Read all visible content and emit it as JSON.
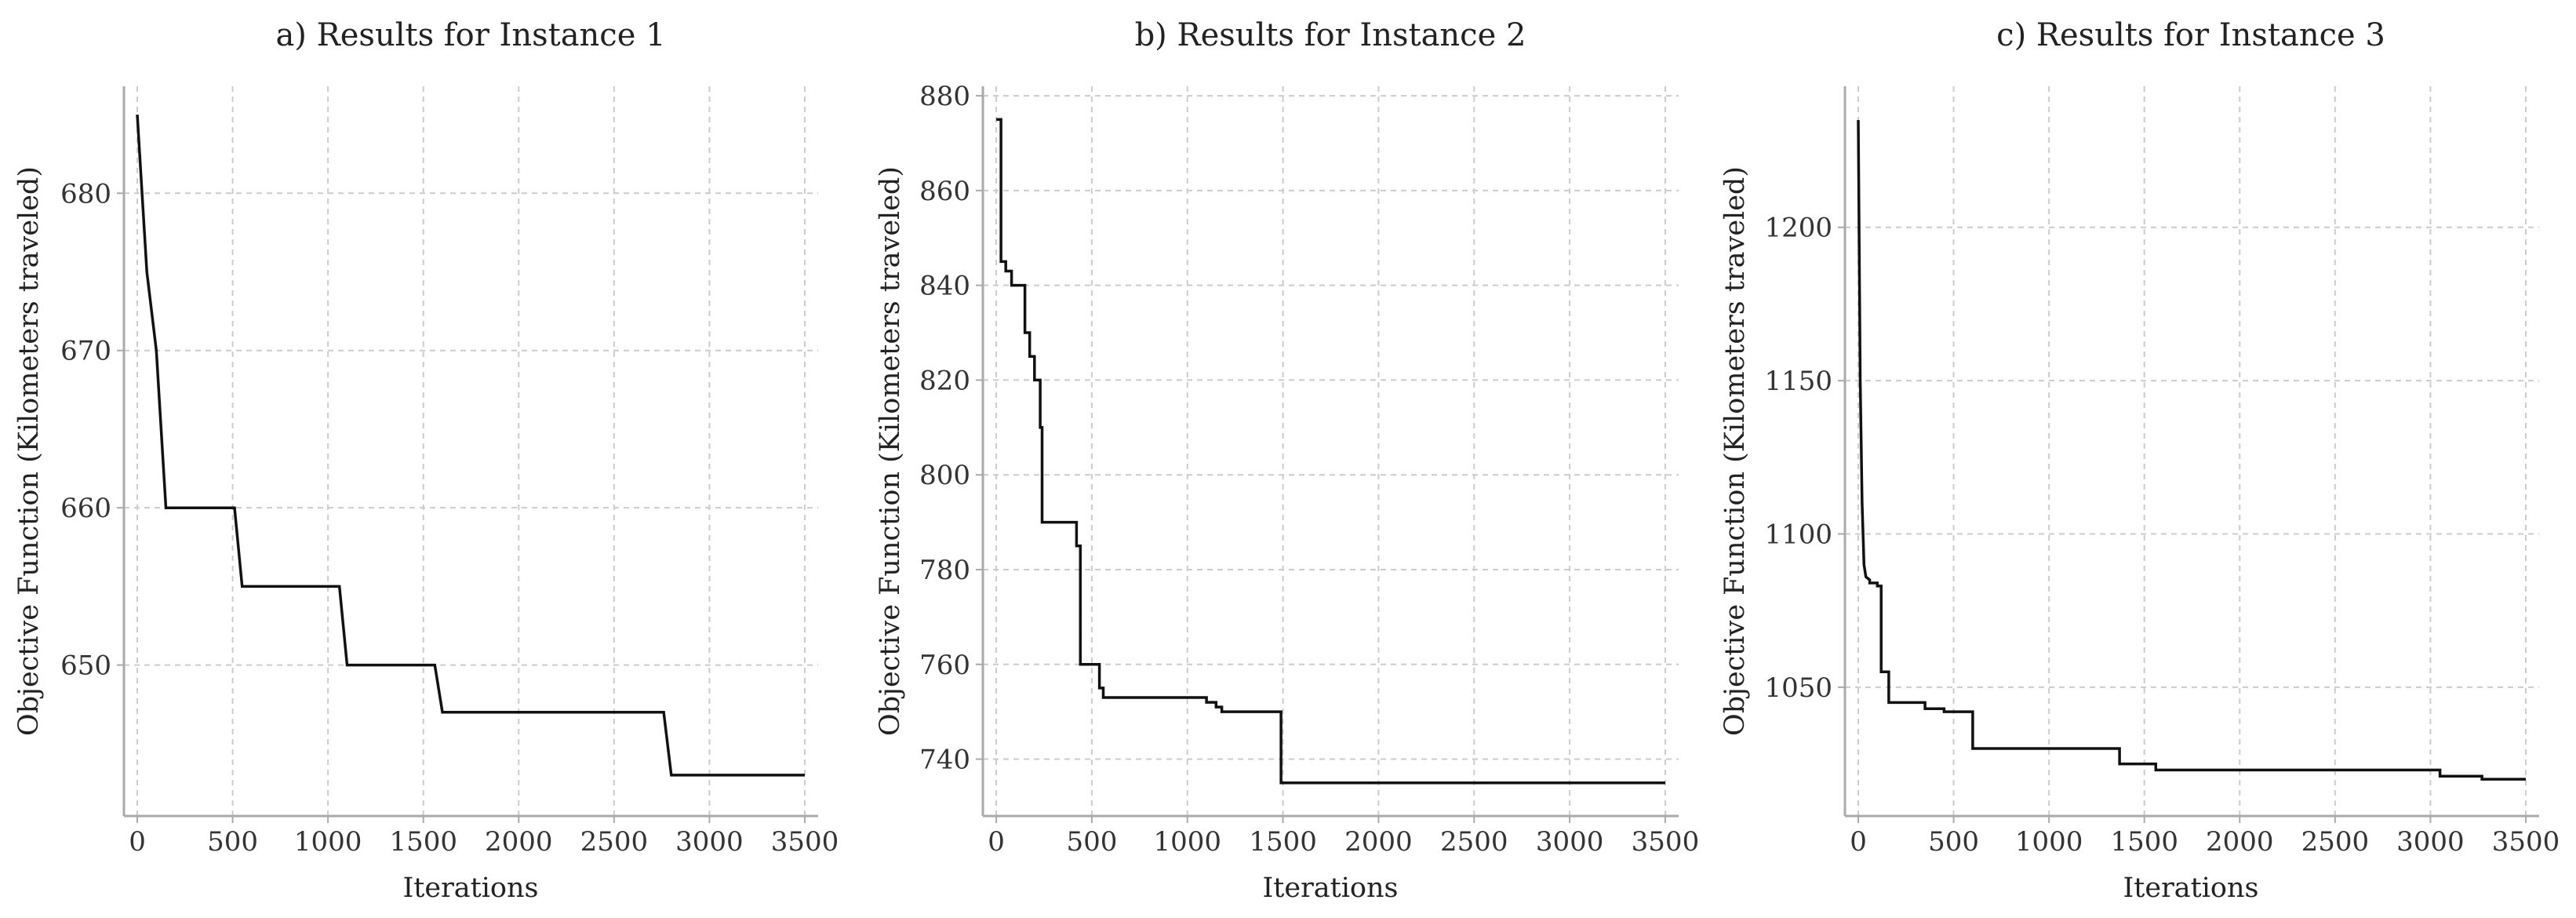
{
  "chart_data": [
    {
      "type": "line",
      "title": "a) Results for Instance 1",
      "xlabel": "Iterations",
      "ylabel": "Objective Function (Kilometers traveled)",
      "xlim": [
        -70,
        3570
      ],
      "ylim": [
        640.4,
        686.8
      ],
      "xticks": [
        0,
        500,
        1000,
        1500,
        2000,
        2500,
        3000,
        3500
      ],
      "yticks": [
        650,
        660,
        670,
        680
      ],
      "grid": true,
      "series": [
        {
          "color": "#111111",
          "x": [
            0,
            50,
            100,
            150,
            510,
            550,
            1060,
            1100,
            1560,
            1600,
            2760,
            2800,
            3500
          ],
          "y": [
            685,
            675,
            670,
            660,
            660,
            655,
            655,
            650,
            650,
            647,
            647,
            643,
            643
          ]
        }
      ]
    },
    {
      "type": "line",
      "title": "b) Results for Instance 2",
      "xlabel": "Iterations",
      "ylabel": "Objective Function (Kilometers traveled)",
      "xlim": [
        -70,
        3570
      ],
      "ylim": [
        728,
        882
      ],
      "xticks": [
        0,
        500,
        1000,
        1500,
        2000,
        2500,
        3000,
        3500
      ],
      "yticks": [
        740,
        760,
        780,
        800,
        820,
        840,
        860,
        880
      ],
      "grid": true,
      "series": [
        {
          "color": "#111111",
          "x": [
            0,
            25,
            25,
            50,
            50,
            80,
            80,
            150,
            150,
            175,
            175,
            200,
            200,
            230,
            230,
            240,
            240,
            420,
            420,
            440,
            440,
            540,
            540,
            560,
            560,
            580,
            580,
            1100,
            1100,
            1150,
            1150,
            1180,
            1180,
            1490,
            1490,
            3500
          ],
          "y": [
            875,
            875,
            845,
            845,
            843,
            843,
            840,
            840,
            830,
            830,
            825,
            825,
            820,
            820,
            810,
            810,
            790,
            790,
            785,
            785,
            760,
            760,
            755,
            755,
            753,
            753,
            753,
            753,
            752,
            752,
            751,
            751,
            750,
            750,
            735,
            735
          ]
        }
      ]
    },
    {
      "type": "line",
      "title": "c) Results for Instance 3",
      "xlabel": "Iterations",
      "ylabel": "Objective Function (Kilometers traveled)",
      "xlim": [
        -70,
        3570
      ],
      "ylim": [
        1008,
        1246
      ],
      "xticks": [
        0,
        500,
        1000,
        1500,
        2000,
        2500,
        3000,
        3500
      ],
      "yticks": [
        1050,
        1100,
        1150,
        1200
      ],
      "grid": true,
      "series": [
        {
          "color": "#111111",
          "x": [
            0,
            10,
            20,
            30,
            40,
            60,
            60,
            100,
            100,
            120,
            120,
            160,
            160,
            350,
            350,
            420,
            420,
            450,
            450,
            600,
            600,
            1370,
            1370,
            1560,
            1560,
            3050,
            3050,
            3270,
            3270,
            3500
          ],
          "y": [
            1235,
            1150,
            1110,
            1090,
            1086,
            1085,
            1084,
            1084,
            1083,
            1083,
            1055,
            1055,
            1045,
            1045,
            1043,
            1043,
            1043,
            1043,
            1042,
            1042,
            1030,
            1030,
            1025,
            1025,
            1023,
            1023,
            1021,
            1021,
            1020,
            1020
          ]
        }
      ]
    }
  ]
}
